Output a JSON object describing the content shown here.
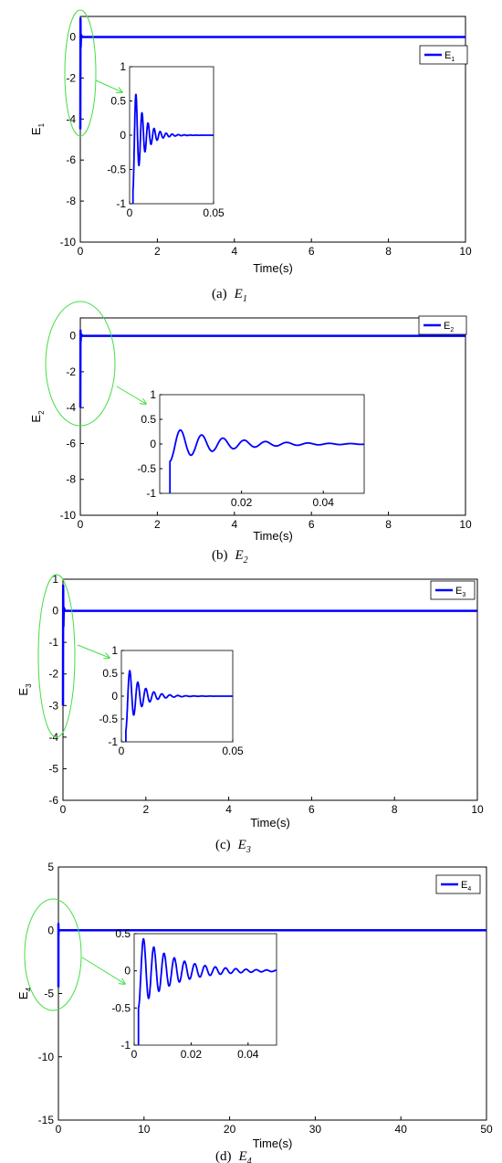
{
  "colors": {
    "series": "#0000ff",
    "annotation": "#44dd44",
    "axes": "#000000",
    "background": "#ffffff"
  },
  "chart_data": [
    {
      "id": "a",
      "type": "line",
      "caption_label": "(a)",
      "caption_symbol": "E",
      "caption_sub": "1",
      "xlabel": "Time(s)",
      "ylabel": "E",
      "ylabel_sub": "1",
      "xlim": [
        0,
        10
      ],
      "ylim": [
        -10,
        1
      ],
      "xticks": [
        "0",
        "2",
        "4",
        "6",
        "8",
        "10"
      ],
      "yticks": [
        "0",
        "-2",
        "-4",
        "-6",
        "-8",
        "-10"
      ],
      "legend": {
        "text": "E",
        "sub": "1",
        "position": "top-right"
      },
      "series": [
        {
          "name": "E1",
          "x": [
            0,
            0.005,
            0.01,
            0.02,
            0.05,
            10
          ],
          "y": [
            -4.5,
            0.9,
            -0.5,
            0.1,
            0,
            0
          ]
        }
      ],
      "inset": {
        "xlim": [
          0,
          0.05
        ],
        "ylim": [
          -1,
          1
        ],
        "xticks": [
          "0",
          "0.05"
        ],
        "yticks": [
          "1",
          "0.5",
          "0",
          "-0.5",
          "-1"
        ],
        "signal": {
          "start": 0.002,
          "amplitude": 0.8,
          "decay": 0.006,
          "period": 0.0018,
          "end": 0.05
        }
      }
    },
    {
      "id": "b",
      "type": "line",
      "caption_label": "(b)",
      "caption_symbol": "E",
      "caption_sub": "2",
      "xlabel": "Time(s)",
      "ylabel": "E",
      "ylabel_sub": "2",
      "xlim": [
        0,
        10
      ],
      "ylim": [
        -10,
        1
      ],
      "xticks": [
        "0",
        "2",
        "4",
        "6",
        "8",
        "10"
      ],
      "yticks": [
        "0",
        "-2",
        "-4",
        "-6",
        "-8",
        "-10"
      ],
      "legend": {
        "text": "E",
        "sub": "2",
        "position": "top-right"
      },
      "series": [
        {
          "name": "E2",
          "x": [
            0,
            0.005,
            0.01,
            0.02,
            0.05,
            10
          ],
          "y": [
            -4,
            0.3,
            -0.3,
            0.1,
            0,
            0
          ]
        }
      ],
      "inset": {
        "xlim": [
          0,
          0.05
        ],
        "ylim": [
          -1,
          1
        ],
        "xticks": [
          "0.02",
          "0.04"
        ],
        "yticks": [
          "1",
          "0.5",
          "0",
          "-0.5",
          "-1"
        ],
        "signal": {
          "start": 0.0025,
          "amplitude": 0.35,
          "decay": 0.012,
          "period": 0.0026,
          "end": 0.05
        }
      }
    },
    {
      "id": "c",
      "type": "line",
      "caption_label": "(c)",
      "caption_symbol": "E",
      "caption_sub": "3",
      "xlabel": "Time(s)",
      "ylabel": "E",
      "ylabel_sub": "3",
      "xlim": [
        0,
        10
      ],
      "ylim": [
        -6,
        1
      ],
      "xticks": [
        "0",
        "2",
        "4",
        "6",
        "8",
        "10"
      ],
      "yticks": [
        "1",
        "0",
        "-1",
        "-2",
        "-3",
        "-4",
        "-5",
        "-6"
      ],
      "legend": {
        "text": "E",
        "sub": "3",
        "position": "top-right"
      },
      "series": [
        {
          "name": "E3",
          "x": [
            0,
            0.005,
            0.01,
            0.02,
            0.05,
            10
          ],
          "y": [
            -3,
            0.8,
            -0.5,
            0.1,
            0,
            0
          ]
        }
      ],
      "inset": {
        "xlim": [
          0,
          0.05
        ],
        "ylim": [
          -1,
          1
        ],
        "xticks": [
          "0",
          "0.05"
        ],
        "yticks": [
          "1",
          "0.5",
          "0",
          "-0.5",
          "-1"
        ],
        "signal": {
          "start": 0.002,
          "amplitude": 0.75,
          "decay": 0.006,
          "period": 0.0018,
          "end": 0.05
        }
      }
    },
    {
      "id": "d",
      "type": "line",
      "caption_label": "(d)",
      "caption_symbol": "E",
      "caption_sub": "4",
      "xlabel": "Time(s)",
      "ylabel": "E",
      "ylabel_sub": "4",
      "xlim": [
        0,
        50
      ],
      "ylim": [
        -15,
        5
      ],
      "xticks": [
        "0",
        "10",
        "20",
        "30",
        "40",
        "50"
      ],
      "yticks": [
        "5",
        "0",
        "-5",
        "-10",
        "-15"
      ],
      "legend": {
        "text": "E",
        "sub": "4",
        "position": "top-right"
      },
      "series": [
        {
          "name": "E4",
          "x": [
            0,
            0.005,
            0.01,
            0.02,
            0.05,
            50
          ],
          "y": [
            -4.5,
            0.5,
            -0.4,
            0.1,
            0,
            0
          ]
        }
      ],
      "inset": {
        "xlim": [
          0,
          0.05
        ],
        "ylim": [
          -1,
          0.5
        ],
        "xticks": [
          "0",
          "0.02",
          "0.04"
        ],
        "yticks": [
          "0.5",
          "0",
          "-0.5",
          "-1"
        ],
        "signal": {
          "start": 0.0015,
          "amplitude": 0.5,
          "decay": 0.012,
          "period": 0.0018,
          "end": 0.05
        }
      }
    }
  ]
}
